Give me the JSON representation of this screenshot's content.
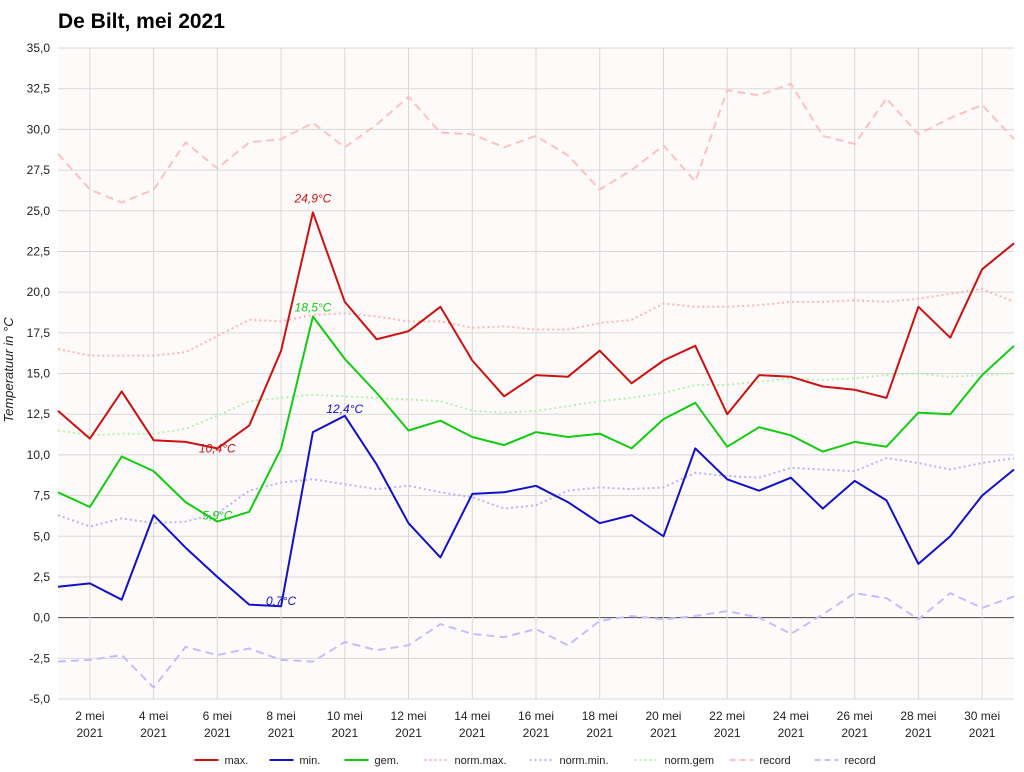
{
  "chart_data": {
    "type": "line",
    "title": "De Bilt, mei 2021",
    "ylabel": "Temperatuur in °C",
    "xlabel": "",
    "ylim": [
      -5,
      35
    ],
    "xlim": [
      1,
      31
    ],
    "yticks": [
      "35,0",
      "32,5",
      "30,0",
      "27,5",
      "25,0",
      "22,5",
      "20,0",
      "17,5",
      "15,0",
      "12,5",
      "10,0",
      "7,5",
      "5,0",
      "2,5",
      "0,0",
      "-2,5",
      "-5,0"
    ],
    "xticks": [
      {
        "day": 2,
        "line1": "2 mei",
        "line2": "2021"
      },
      {
        "day": 4,
        "line1": "4 mei",
        "line2": "2021"
      },
      {
        "day": 6,
        "line1": "6 mei",
        "line2": "2021"
      },
      {
        "day": 8,
        "line1": "8 mei",
        "line2": "2021"
      },
      {
        "day": 10,
        "line1": "10 mei",
        "line2": "2021"
      },
      {
        "day": 12,
        "line1": "12 mei",
        "line2": "2021"
      },
      {
        "day": 14,
        "line1": "14 mei",
        "line2": "2021"
      },
      {
        "day": 16,
        "line1": "16 mei",
        "line2": "2021"
      },
      {
        "day": 18,
        "line1": "18 mei",
        "line2": "2021"
      },
      {
        "day": 20,
        "line1": "20 mei",
        "line2": "2021"
      },
      {
        "day": 22,
        "line1": "22 mei",
        "line2": "2021"
      },
      {
        "day": 24,
        "line1": "24 mei",
        "line2": "2021"
      },
      {
        "day": 26,
        "line1": "26 mei",
        "line2": "2021"
      },
      {
        "day": 28,
        "line1": "28 mei",
        "line2": "2021"
      },
      {
        "day": 30,
        "line1": "30 mei",
        "line2": "2021"
      }
    ],
    "grid": true,
    "legend_position": "bottom",
    "days": [
      1,
      2,
      3,
      4,
      5,
      6,
      7,
      8,
      9,
      10,
      11,
      12,
      13,
      14,
      15,
      16,
      17,
      18,
      19,
      20,
      21,
      22,
      23,
      24,
      25,
      26,
      27,
      28,
      29,
      30,
      31
    ],
    "series": [
      {
        "name": "record",
        "color": "#ffc0c0",
        "style": "dashed",
        "width": 2,
        "values": [
          28.5,
          26.3,
          25.5,
          26.3,
          29.2,
          27.6,
          29.2,
          29.4,
          30.4,
          28.9,
          30.3,
          32.0,
          29.8,
          29.7,
          28.9,
          29.6,
          28.4,
          26.3,
          27.5,
          29.0,
          26.8,
          32.4,
          32.1,
          32.8,
          29.6,
          29.1,
          31.9,
          29.7,
          30.7,
          31.5,
          29.4
        ]
      },
      {
        "name": "record",
        "color": "#c0c0ff",
        "style": "dashed",
        "width": 2,
        "values": [
          -2.7,
          -2.6,
          -2.3,
          -4.3,
          -1.8,
          -2.3,
          -1.9,
          -2.6,
          -2.7,
          -1.5,
          -2.0,
          -1.7,
          -0.4,
          -1.0,
          -1.2,
          -0.7,
          -1.7,
          -0.2,
          0.1,
          -0.1,
          0.1,
          0.4,
          0.0,
          -1.0,
          0.2,
          1.5,
          1.2,
          -0.1,
          1.5,
          0.6,
          1.3
        ]
      },
      {
        "name": "norm.max.",
        "color": "#ffb4b4",
        "style": "dotted",
        "width": 2,
        "values": [
          16.5,
          16.1,
          16.1,
          16.1,
          16.3,
          17.3,
          18.3,
          18.2,
          18.6,
          18.7,
          18.5,
          18.2,
          18.2,
          17.8,
          17.9,
          17.7,
          17.7,
          18.1,
          18.3,
          19.3,
          19.1,
          19.1,
          19.2,
          19.4,
          19.4,
          19.5,
          19.4,
          19.6,
          19.9,
          20.2,
          19.4
        ]
      },
      {
        "name": "norm.min.",
        "color": "#b4b4ff",
        "style": "dotted",
        "width": 2,
        "values": [
          6.3,
          5.6,
          6.1,
          5.8,
          5.9,
          6.4,
          7.8,
          8.3,
          8.5,
          8.2,
          7.9,
          8.1,
          7.7,
          7.4,
          6.7,
          6.9,
          7.8,
          8.0,
          7.9,
          8.0,
          8.9,
          8.7,
          8.6,
          9.2,
          9.1,
          9.0,
          9.8,
          9.5,
          9.1,
          9.5,
          9.8
        ]
      },
      {
        "name": "norm.gem",
        "color": "#b4f0b4",
        "style": "dotted",
        "width": 2,
        "values": [
          11.5,
          11.2,
          11.3,
          11.3,
          11.6,
          12.4,
          13.3,
          13.5,
          13.7,
          13.6,
          13.5,
          13.4,
          13.3,
          12.7,
          12.6,
          12.7,
          13.0,
          13.3,
          13.5,
          13.8,
          14.3,
          14.3,
          14.5,
          14.7,
          14.6,
          14.7,
          14.9,
          15.0,
          14.8,
          14.9,
          15.0
        ]
      },
      {
        "name": "max.",
        "color": "#cc1111",
        "style": "solid",
        "width": 2,
        "values": [
          12.7,
          11.0,
          13.9,
          10.9,
          10.8,
          10.4,
          11.8,
          16.4,
          24.9,
          19.4,
          17.1,
          17.6,
          19.1,
          15.8,
          13.6,
          14.9,
          14.8,
          16.4,
          14.4,
          15.8,
          16.7,
          12.5,
          14.9,
          14.8,
          14.2,
          14.0,
          13.5,
          19.1,
          17.2,
          21.4,
          23.0
        ]
      },
      {
        "name": "min.",
        "color": "#1111cc",
        "style": "solid",
        "width": 2,
        "values": [
          1.9,
          2.1,
          1.1,
          6.3,
          4.3,
          2.5,
          0.8,
          0.7,
          11.4,
          12.4,
          9.4,
          5.8,
          3.7,
          7.6,
          7.7,
          8.1,
          7.1,
          5.8,
          6.3,
          5.0,
          10.4,
          8.5,
          7.8,
          8.6,
          6.7,
          8.4,
          7.2,
          3.3,
          5.0,
          7.5,
          9.1
        ]
      },
      {
        "name": "gem.",
        "color": "#11cc11",
        "style": "solid",
        "width": 2,
        "values": [
          7.7,
          6.8,
          9.9,
          9.0,
          7.1,
          5.9,
          6.5,
          10.4,
          18.5,
          15.9,
          13.8,
          11.5,
          12.1,
          11.1,
          10.6,
          11.4,
          11.1,
          11.3,
          10.4,
          12.2,
          13.2,
          10.5,
          11.7,
          11.2,
          10.2,
          10.8,
          10.5,
          12.6,
          12.5,
          14.9,
          16.7
        ]
      }
    ],
    "annotations": [
      {
        "text": "24,9°C",
        "day": 9,
        "value": 24.9,
        "color": "#cc1111",
        "anchor": "middle",
        "dx": 0,
        "dy": -10
      },
      {
        "text": "10,4°C",
        "day": 6,
        "value": 10.4,
        "color": "#cc1111",
        "anchor": "middle",
        "dx": 0,
        "dy": 4
      },
      {
        "text": "18,5°C",
        "day": 9,
        "value": 18.5,
        "color": "#11cc11",
        "anchor": "middle",
        "dx": 0,
        "dy": -5
      },
      {
        "text": "5,9°C",
        "day": 6,
        "value": 5.9,
        "color": "#11cc11",
        "anchor": "middle",
        "dx": 0,
        "dy": -2
      },
      {
        "text": "12,4°C",
        "day": 10,
        "value": 12.4,
        "color": "#1111cc",
        "anchor": "middle",
        "dx": 0,
        "dy": -3
      },
      {
        "text": "0,7°C",
        "day": 8,
        "value": 0.7,
        "color": "#1111cc",
        "anchor": "middle",
        "dx": 0,
        "dy": -1
      }
    ],
    "legend": [
      {
        "label": "max.",
        "color": "#cc1111",
        "style": "solid"
      },
      {
        "label": "min.",
        "color": "#1111cc",
        "style": "solid"
      },
      {
        "label": "gem.",
        "color": "#11cc11",
        "style": "solid"
      },
      {
        "label": "norm.max.",
        "color": "#ffb4b4",
        "style": "dotted"
      },
      {
        "label": "norm.min.",
        "color": "#b4b4ff",
        "style": "dotted"
      },
      {
        "label": "norm.gem",
        "color": "#b4f0b4",
        "style": "dotted"
      },
      {
        "label": "record",
        "color": "#ffc0c0",
        "style": "dashed"
      },
      {
        "label": "record",
        "color": "#c0c0ff",
        "style": "dashed"
      }
    ],
    "colors": {
      "plot_background": "#fffafa",
      "grid": "#d8d8d8",
      "zero_line": "#444444"
    }
  }
}
